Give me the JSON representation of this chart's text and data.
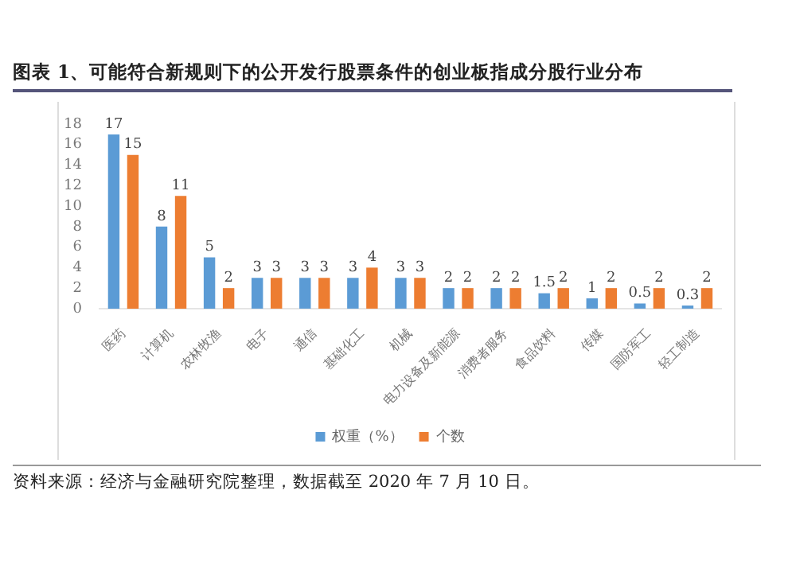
{
  "chart_data": {
    "type": "bar",
    "title": "图表 1、可能符合新规则下的公开发行股票条件的创业板指成分股行业分布",
    "categories": [
      "医药",
      "计算机",
      "农林牧渔",
      "电子",
      "通信",
      "基础化工",
      "机械",
      "电力设备及新能源",
      "消费者服务",
      "食品饮料",
      "传媒",
      "国防军工",
      "轻工制造"
    ],
    "series": [
      {
        "name": "权重（%）",
        "color": "#5b9bd5",
        "values": [
          17,
          8,
          5,
          3,
          3,
          3,
          3,
          2,
          2,
          1.5,
          1,
          0.5,
          0.3
        ]
      },
      {
        "name": "个数",
        "color": "#ed7d31",
        "values": [
          15,
          11,
          2,
          3,
          3,
          4,
          3,
          2,
          2,
          2,
          2,
          2,
          2
        ]
      }
    ],
    "ylim": [
      0,
      18
    ],
    "yticks": [
      0,
      2,
      4,
      6,
      8,
      10,
      12,
      14,
      16,
      18
    ],
    "grid": false,
    "legend": "bottom",
    "data_labels": true,
    "annotations": [
      "资料来源：经济与金融研究院整理，数据截至 2020 年 7 月 10 日。"
    ]
  }
}
